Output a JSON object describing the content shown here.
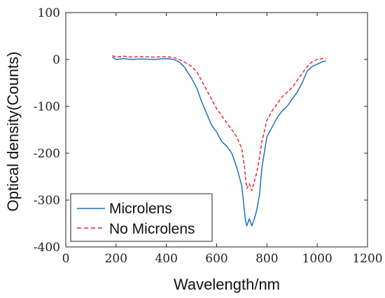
{
  "chart_data": {
    "type": "line",
    "xlabel": "Wavelength/nm",
    "ylabel": "Optical density(Counts)",
    "xlim": [
      0,
      1200
    ],
    "ylim": [
      -400,
      100
    ],
    "xticks": [
      0,
      200,
      400,
      600,
      800,
      1000,
      1200
    ],
    "yticks": [
      -400,
      -300,
      -200,
      -100,
      0,
      100
    ],
    "grid": false,
    "legend_position": "bottom-left",
    "series": [
      {
        "name": "Microlens",
        "color": "#1f6fbf",
        "style": "solid",
        "x": [
          185,
          200,
          230,
          260,
          300,
          350,
          400,
          430,
          450,
          470,
          500,
          520,
          540,
          560,
          580,
          600,
          620,
          640,
          660,
          680,
          700,
          710,
          715,
          720,
          730,
          740,
          750,
          760,
          770,
          780,
          800,
          820,
          840,
          860,
          880,
          900,
          920,
          940,
          960,
          980,
          1000,
          1020,
          1035
        ],
        "y": [
          5,
          0,
          2,
          0,
          1,
          0,
          2,
          0,
          -5,
          -15,
          -40,
          -60,
          -90,
          -115,
          -140,
          -155,
          -175,
          -185,
          -200,
          -230,
          -270,
          -320,
          -345,
          -355,
          -340,
          -355,
          -340,
          -320,
          -290,
          -230,
          -165,
          -145,
          -125,
          -110,
          -100,
          -85,
          -70,
          -50,
          -25,
          -15,
          -10,
          -5,
          -3
        ]
      },
      {
        "name": "No Microlens",
        "color": "#e8272b",
        "style": "dashed",
        "x": [
          185,
          200,
          230,
          260,
          300,
          350,
          400,
          430,
          450,
          470,
          500,
          520,
          540,
          560,
          580,
          600,
          620,
          640,
          660,
          680,
          700,
          710,
          715,
          720,
          730,
          740,
          750,
          760,
          770,
          780,
          800,
          820,
          840,
          860,
          880,
          900,
          920,
          940,
          960,
          980,
          1000,
          1020,
          1035
        ],
        "y": [
          8,
          5,
          7,
          5,
          6,
          5,
          6,
          4,
          0,
          -5,
          -15,
          -25,
          -45,
          -65,
          -85,
          -105,
          -120,
          -135,
          -150,
          -165,
          -190,
          -225,
          -255,
          -275,
          -265,
          -280,
          -260,
          -240,
          -210,
          -175,
          -130,
          -110,
          -95,
          -80,
          -70,
          -60,
          -45,
          -30,
          -15,
          -5,
          0,
          2,
          3
        ]
      }
    ]
  }
}
